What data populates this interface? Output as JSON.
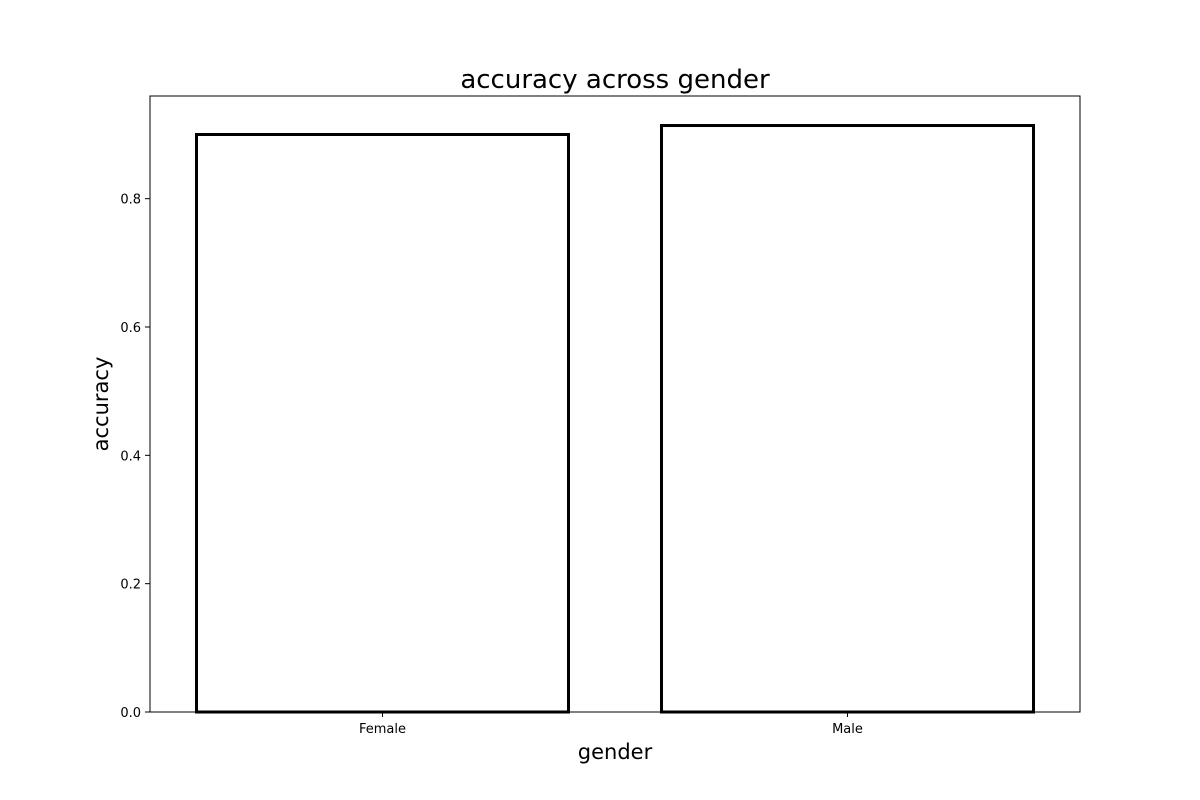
{
  "chart_data": {
    "type": "bar",
    "title": "accuracy across gender",
    "xlabel": "gender",
    "ylabel": "accuracy",
    "categories": [
      "Female",
      "Male"
    ],
    "values": [
      0.9,
      0.914
    ],
    "ylim": [
      0,
      0.96
    ],
    "yticks": [
      0.0,
      0.2,
      0.4,
      0.6,
      0.8
    ],
    "ytick_labels": [
      "0.0",
      "0.2",
      "0.4",
      "0.6",
      "0.8"
    ],
    "grid": false,
    "legend": "none",
    "bar_fill_color": "#ffffff",
    "bar_edge_color": "#000000"
  }
}
